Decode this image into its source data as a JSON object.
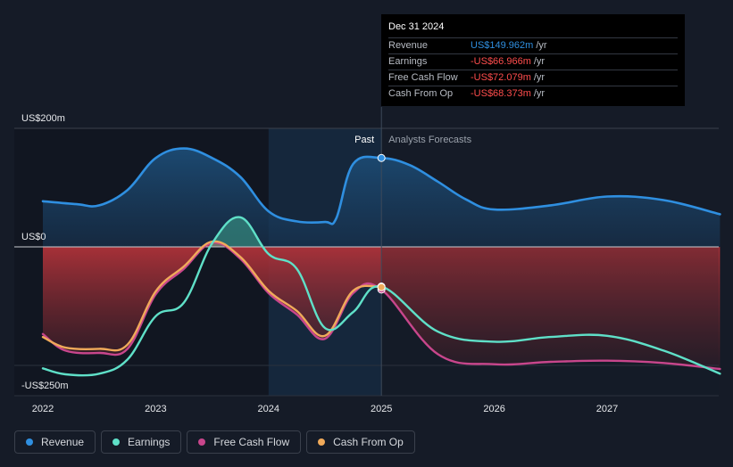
{
  "chart_data": {
    "type": "area",
    "title": "",
    "y_axis_labels": [
      "US$200m",
      "US$0",
      "-US$250m"
    ],
    "y_axis_values": [
      200,
      0,
      -250
    ],
    "ylim": [
      -250,
      200
    ],
    "x_tick_labels": [
      "2022",
      "2023",
      "2024",
      "2025",
      "2026",
      "2027"
    ],
    "x_tick_values": [
      2022,
      2023,
      2024,
      2025,
      2026,
      2027
    ],
    "xlim": [
      2021.75,
      2028.0
    ],
    "past_label": "Past",
    "forecast_label": "Analysts Forecasts",
    "past_end": 2025.0,
    "highlight_start": 2024.0,
    "series": [
      {
        "name": "Revenue",
        "color": "#2f8fe0",
        "x": [
          2022.0,
          2022.3,
          2022.5,
          2022.75,
          2023.0,
          2023.25,
          2023.5,
          2023.75,
          2024.0,
          2024.25,
          2024.5,
          2024.6,
          2024.75,
          2025.0,
          2025.25,
          2025.5,
          2025.75,
          2026.0,
          2026.5,
          2027.0,
          2027.5,
          2028.0
        ],
        "y": [
          77,
          72,
          70,
          96,
          150,
          166,
          150,
          118,
          60,
          43,
          42,
          48,
          140,
          150,
          138,
          110,
          80,
          63,
          70,
          85,
          79,
          55
        ]
      },
      {
        "name": "Earnings",
        "color": "#5fe0c8",
        "x": [
          2022.0,
          2022.2,
          2022.5,
          2022.75,
          2023.0,
          2023.25,
          2023.5,
          2023.75,
          2024.0,
          2024.25,
          2024.5,
          2024.75,
          2025.0,
          2025.5,
          2026.0,
          2026.5,
          2027.0,
          2027.5,
          2028.0
        ],
        "y": [
          -205,
          -215,
          -214,
          -190,
          -117,
          -94,
          6,
          50,
          -12,
          -37,
          -137,
          -110,
          -67,
          -143,
          -160,
          -152,
          -150,
          -175,
          -214
        ]
      },
      {
        "name": "Free Cash Flow",
        "color": "#c8468c",
        "x": [
          2022.0,
          2022.2,
          2022.5,
          2022.75,
          2023.0,
          2023.25,
          2023.5,
          2023.75,
          2024.0,
          2024.25,
          2024.5,
          2024.75,
          2025.0,
          2025.5,
          2026.0,
          2026.5,
          2027.0,
          2027.5,
          2028.0
        ],
        "y": [
          -147,
          -175,
          -179,
          -172,
          -80,
          -37,
          7,
          -20,
          -78,
          -114,
          -155,
          -78,
          -72,
          -181,
          -198,
          -194,
          -192,
          -196,
          -206
        ]
      },
      {
        "name": "Cash From Op",
        "color": "#f0aa5a",
        "x": [
          2022.0,
          2022.2,
          2022.5,
          2022.75,
          2023.0,
          2023.25,
          2023.5,
          2023.75,
          2024.0,
          2024.25,
          2024.5,
          2024.75,
          2025.0
        ],
        "y": [
          -152,
          -170,
          -172,
          -165,
          -75,
          -33,
          9,
          -17,
          -74,
          -108,
          -150,
          -74,
          -68
        ]
      }
    ]
  },
  "tooltip": {
    "date": "Dec 31 2024",
    "rows": [
      {
        "label": "Revenue",
        "value": "US$149.962m",
        "unit": "/yr",
        "color": "#2f8fe0"
      },
      {
        "label": "Earnings",
        "value": "-US$66.966m",
        "unit": "/yr",
        "color": "#ff4d4d"
      },
      {
        "label": "Free Cash Flow",
        "value": "-US$72.079m",
        "unit": "/yr",
        "color": "#ff4d4d"
      },
      {
        "label": "Cash From Op",
        "value": "-US$68.373m",
        "unit": "/yr",
        "color": "#ff4d4d"
      }
    ]
  },
  "legend": [
    {
      "label": "Revenue",
      "color": "#2f8fe0"
    },
    {
      "label": "Earnings",
      "color": "#5fe0c8"
    },
    {
      "label": "Free Cash Flow",
      "color": "#c8468c"
    },
    {
      "label": "Cash From Op",
      "color": "#f0aa5a"
    }
  ]
}
